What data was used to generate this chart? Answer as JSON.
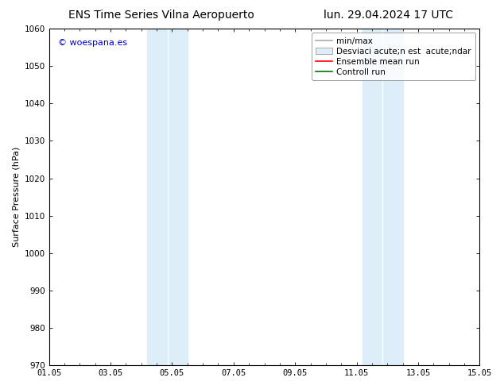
{
  "title_left": "ENS Time Series Vilna Aeropuerto",
  "title_right": "lun. 29.04.2024 17 UTC",
  "ylabel": "Surface Pressure (hPa)",
  "ylim": [
    970,
    1060
  ],
  "yticks": [
    970,
    980,
    990,
    1000,
    1010,
    1020,
    1030,
    1040,
    1050,
    1060
  ],
  "xtick_labels": [
    "01.05",
    "03.05",
    "05.05",
    "07.05",
    "09.05",
    "11.05",
    "13.05",
    "15.05"
  ],
  "xtick_positions": [
    0,
    2,
    4,
    6,
    8,
    10,
    12,
    14
  ],
  "xlim": [
    0,
    14
  ],
  "shaded_regions": [
    {
      "x_start": 3.2,
      "x_end": 3.85,
      "color": "#ddeef8"
    },
    {
      "x_start": 3.85,
      "x_end": 4.5,
      "color": "#ddeef8"
    },
    {
      "x_start": 10.2,
      "x_end": 10.85,
      "color": "#ddeef8"
    },
    {
      "x_start": 10.85,
      "x_end": 11.5,
      "color": "#ddeef8"
    }
  ],
  "watermark_text": "© woespana.es",
  "watermark_color": "#0000cc",
  "legend_entries": [
    {
      "label": "min/max",
      "type": "line",
      "color": "#aaaaaa",
      "lw": 1.2
    },
    {
      "label": "Desviaci acute;n est  acute;ndar",
      "type": "patch",
      "facecolor": "#ddeef8",
      "edgecolor": "#aaaaaa"
    },
    {
      "label": "Ensemble mean run",
      "type": "line",
      "color": "#ff0000",
      "lw": 1.2
    },
    {
      "label": "Controll run",
      "type": "line",
      "color": "#007700",
      "lw": 1.2
    }
  ],
  "background_color": "#ffffff",
  "title_fontsize": 10,
  "axis_label_fontsize": 8,
  "tick_fontsize": 7.5,
  "watermark_fontsize": 8,
  "legend_fontsize": 7.5
}
